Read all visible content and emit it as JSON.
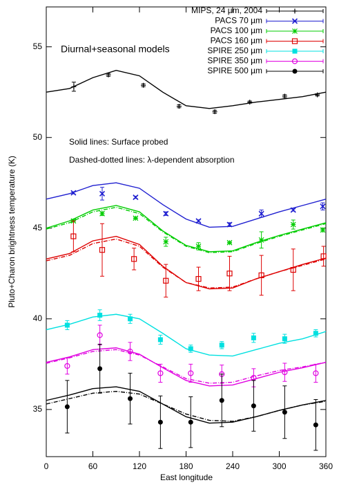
{
  "chart_data": {
    "type": "errorbar",
    "annotations": [
      "Diurnal+seasonal models",
      "Solid lines: Surface probed",
      "Dashed-dotted lines: λ-dependent absorption"
    ],
    "xlabel": "East longitude",
    "ylabel": "Pluto+Charon brightness temperature (K)",
    "xlim": [
      0,
      360
    ],
    "xticks": [
      0,
      60,
      120,
      180,
      240,
      300,
      360
    ],
    "ylim": [
      32.4,
      57.2
    ],
    "yticks": [
      35,
      40,
      45,
      50,
      55
    ],
    "legend": "top-right",
    "series": [
      {
        "name": "MIPS, 24 µm, 2004",
        "color": "#000000",
        "marker": "plus",
        "x": [
          35.5,
          80,
          125,
          171,
          217,
          262,
          307,
          349
        ],
        "values": [
          52.8,
          53.45,
          52.88,
          51.72,
          51.42,
          51.95,
          52.28,
          52.35
        ],
        "errors": [
          0.25,
          0.08,
          0.08,
          0.08,
          0.08,
          0.06,
          0.08,
          0.06
        ]
      },
      {
        "name": "PACS 70 µm",
        "color": "#1f1fd0",
        "marker": "cross",
        "x": [
          35,
          72,
          115,
          154,
          196,
          236,
          277,
          318,
          356
        ],
        "values": [
          46.95,
          46.9,
          46.7,
          45.8,
          45.4,
          45.2,
          45.8,
          46.0,
          46.2
        ],
        "errors": [
          0.06,
          0.35,
          0.06,
          0.1,
          0.06,
          0.1,
          0.2,
          0.06,
          0.2
        ]
      },
      {
        "name": "PACS 100 µm",
        "color": "#00cc00",
        "marker": "star",
        "x": [
          35,
          72,
          115,
          154,
          196,
          236,
          277,
          318,
          356
        ],
        "values": [
          45.4,
          45.8,
          45.55,
          44.25,
          44.0,
          44.2,
          44.35,
          45.2,
          44.9
        ],
        "errors": [
          0.06,
          0.1,
          0.06,
          0.25,
          0.2,
          0.06,
          0.45,
          0.25,
          0.1
        ]
      },
      {
        "name": "PACS 160 µm",
        "color": "#dd0000",
        "marker": "open-square",
        "x": [
          35,
          72,
          113,
          154,
          196,
          236,
          277,
          318,
          357
        ],
        "values": [
          44.55,
          43.8,
          43.3,
          42.1,
          42.2,
          42.5,
          42.4,
          42.7,
          43.45
        ],
        "errors": [
          0.85,
          1.45,
          0.6,
          0.9,
          0.65,
          0.95,
          1.1,
          1.15,
          0.55
        ]
      },
      {
        "name": "SPIRE 250 µm",
        "color": "#00e0e0",
        "marker": "filled-square",
        "x": [
          27,
          69,
          108,
          147,
          186,
          226,
          267,
          307,
          347
        ],
        "values": [
          39.65,
          40.2,
          40.0,
          38.85,
          38.35,
          38.55,
          38.95,
          38.9,
          39.2
        ],
        "errors": [
          0.25,
          0.3,
          0.25,
          0.25,
          0.2,
          0.2,
          0.25,
          0.25,
          0.2
        ]
      },
      {
        "name": "SPIRE 350 µm",
        "color": "#e000e0",
        "marker": "open-circle",
        "x": [
          27,
          69,
          108,
          147,
          186,
          226,
          267,
          307,
          347
        ],
        "values": [
          37.4,
          39.1,
          38.2,
          37.0,
          37.0,
          36.95,
          36.75,
          37.05,
          37.0
        ],
        "errors": [
          0.45,
          0.55,
          0.5,
          0.5,
          0.5,
          0.5,
          0.5,
          0.5,
          0.5
        ]
      },
      {
        "name": "SPIRE 500 µm",
        "color": "#000000",
        "marker": "filled-circle",
        "x": [
          27,
          69,
          108,
          147,
          186,
          226,
          267,
          307,
          347
        ],
        "values": [
          35.15,
          37.25,
          35.6,
          34.3,
          34.3,
          35.5,
          35.2,
          34.85,
          34.15
        ],
        "errors": [
          1.45,
          1.35,
          1.4,
          1.45,
          1.4,
          1.45,
          1.4,
          1.45,
          1.4
        ]
      }
    ],
    "model_x": [
      0,
      30,
      60,
      90,
      120,
      150,
      180,
      210,
      240,
      270,
      300,
      330,
      360
    ],
    "models": [
      {
        "color": "#000000",
        "style": "solid",
        "values": [
          52.5,
          52.7,
          53.3,
          53.7,
          53.4,
          52.5,
          51.75,
          51.6,
          51.75,
          51.95,
          52.1,
          52.25,
          52.5
        ]
      },
      {
        "color": "#1f1fd0",
        "style": "solid",
        "values": [
          46.6,
          46.9,
          47.35,
          47.5,
          47.2,
          46.3,
          45.5,
          45.05,
          45.1,
          45.5,
          45.9,
          46.25,
          46.6
        ]
      },
      {
        "color": "#00cc00",
        "style": "solid",
        "values": [
          45.0,
          45.4,
          46.0,
          46.25,
          45.9,
          44.85,
          44.05,
          43.7,
          43.75,
          44.2,
          44.6,
          44.95,
          45.3
        ]
      },
      {
        "color": "#00cc00",
        "style": "dashdot",
        "values": [
          44.95,
          45.3,
          45.9,
          46.15,
          45.8,
          44.8,
          44.0,
          43.65,
          43.7,
          44.15,
          44.55,
          44.9,
          45.25
        ]
      },
      {
        "color": "#dd0000",
        "style": "solid",
        "values": [
          43.3,
          43.6,
          44.3,
          44.55,
          44.1,
          42.9,
          42.0,
          41.65,
          41.7,
          42.2,
          42.6,
          43.0,
          43.35
        ]
      },
      {
        "color": "#dd0000",
        "style": "dashdot",
        "values": [
          43.2,
          43.5,
          44.15,
          44.4,
          44.0,
          42.85,
          42.0,
          41.7,
          41.75,
          42.2,
          42.6,
          42.95,
          43.3
        ]
      },
      {
        "color": "#00e0e0",
        "style": "solid",
        "values": [
          39.4,
          39.7,
          40.1,
          40.25,
          40.0,
          39.2,
          38.35,
          38.0,
          37.95,
          38.3,
          38.65,
          38.9,
          39.3
        ]
      },
      {
        "color": "#e000e0",
        "style": "solid",
        "values": [
          37.6,
          37.9,
          38.3,
          38.4,
          38.05,
          37.3,
          36.6,
          36.3,
          36.35,
          36.7,
          37.05,
          37.3,
          37.6
        ]
      },
      {
        "color": "#e000e0",
        "style": "dashdot",
        "values": [
          37.55,
          37.85,
          38.2,
          38.3,
          38.0,
          37.35,
          36.7,
          36.45,
          36.5,
          36.85,
          37.15,
          37.35,
          37.6
        ]
      },
      {
        "color": "#000000",
        "style": "solid",
        "values": [
          35.5,
          35.8,
          36.15,
          36.25,
          36.0,
          35.3,
          34.6,
          34.25,
          34.3,
          34.6,
          34.95,
          35.25,
          35.5
        ]
      },
      {
        "color": "#000000",
        "style": "dashdot",
        "values": [
          35.3,
          35.6,
          35.9,
          36.0,
          35.85,
          35.3,
          34.75,
          34.4,
          34.35,
          34.6,
          34.95,
          35.25,
          35.45
        ]
      }
    ]
  }
}
